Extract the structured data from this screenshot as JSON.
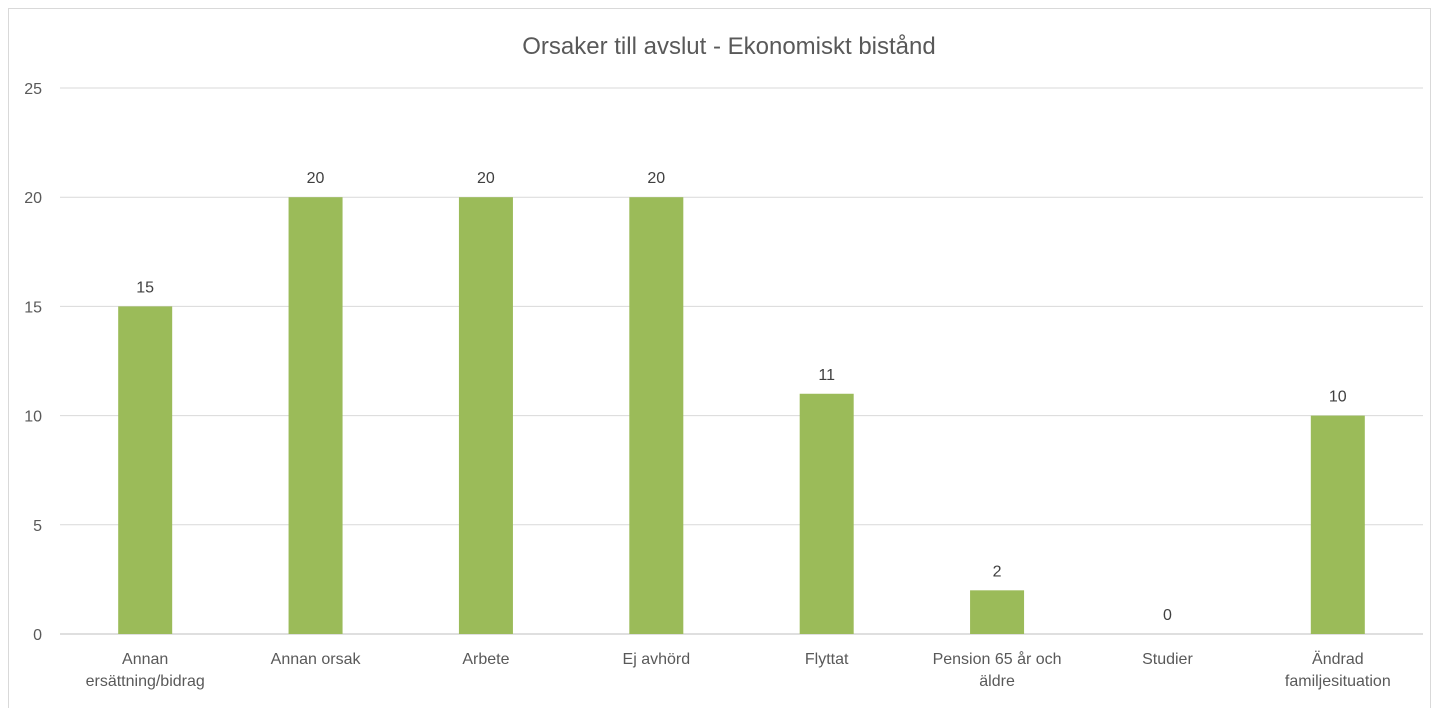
{
  "chart_data": {
    "type": "bar",
    "title": "Orsaker till avslut - Ekonomiskt bistånd",
    "xlabel": "",
    "ylabel": "",
    "ylim": [
      0,
      25
    ],
    "yticks": [
      0,
      5,
      10,
      15,
      20,
      25
    ],
    "grid": true,
    "legend": "none",
    "bar_color": "#9bbb59",
    "categories": [
      [
        "Annan",
        "ersättning/bidrag"
      ],
      [
        "Annan orsak"
      ],
      [
        "Arbete"
      ],
      [
        "Ej avhörd"
      ],
      [
        "Flyttat"
      ],
      [
        "Pension 65 år och",
        "äldre"
      ],
      [
        "Studier"
      ],
      [
        "Ändrad",
        "familjesituation"
      ]
    ],
    "values": [
      15,
      20,
      20,
      20,
      11,
      2,
      0,
      10
    ]
  }
}
